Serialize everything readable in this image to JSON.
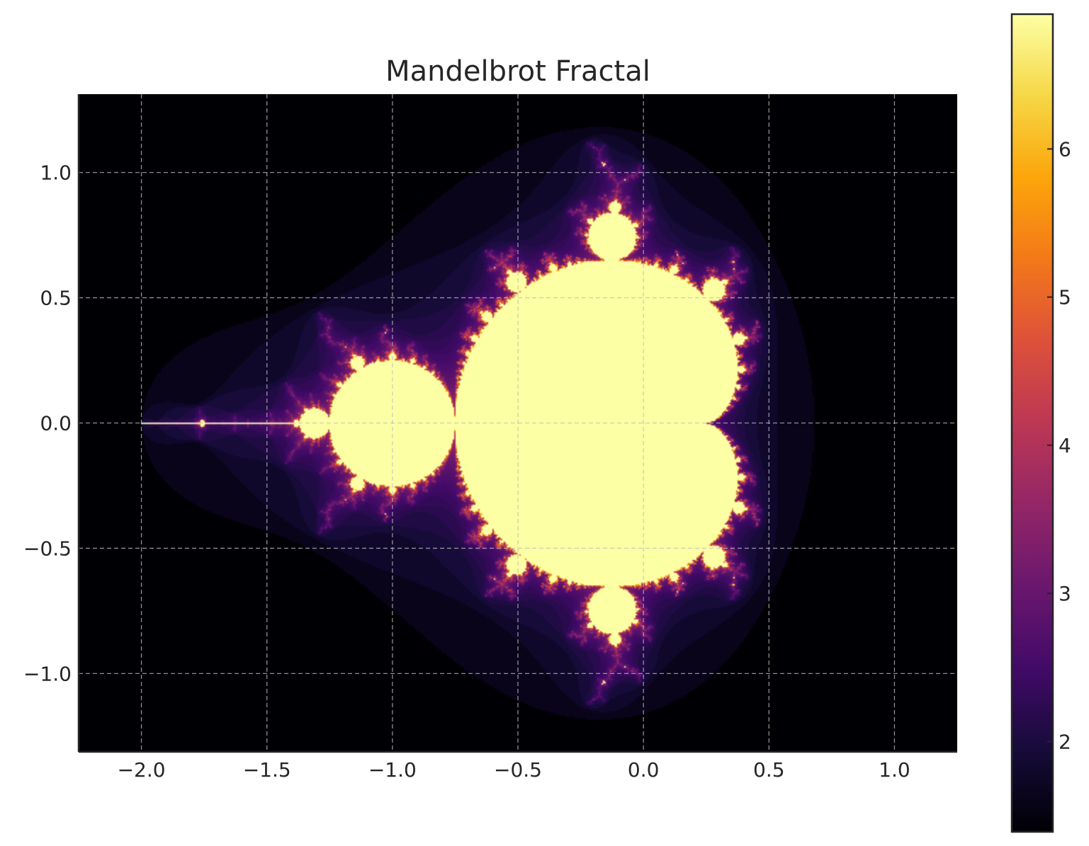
{
  "chart_data": {
    "type": "heatmap",
    "title": "Mandelbrot Fractal",
    "xlabel": "",
    "ylabel": "",
    "xlim": [
      -2.25,
      1.25
    ],
    "ylim": [
      -1.3125,
      1.3125
    ],
    "x_ticks": [
      -2.0,
      -1.5,
      -1.0,
      -0.5,
      0.0,
      0.5,
      1.0
    ],
    "x_tick_labels": [
      "−2.0",
      "−1.5",
      "−1.0",
      "−0.5",
      "0.0",
      "0.5",
      "1.0"
    ],
    "y_ticks": [
      1.0,
      0.5,
      0.0,
      -0.5,
      -1.0
    ],
    "y_tick_labels": [
      "1.0",
      "0.5",
      "0.0",
      "−0.5",
      "−1.0"
    ],
    "grid": true,
    "colormap": "inferno",
    "color_scale": "log(iterations)",
    "colorbar": {
      "range": [
        1.39,
        6.91
      ],
      "ticks": [
        2,
        3,
        4,
        5,
        6
      ],
      "tick_labels": [
        "2",
        "3",
        "4",
        "5",
        "6"
      ]
    },
    "max_iterations": 1000,
    "set_color": "#fcffa4",
    "background_color": "#000004"
  }
}
